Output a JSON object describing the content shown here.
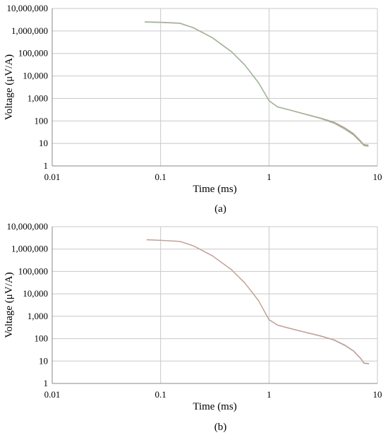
{
  "chart_data": [
    {
      "type": "line",
      "panel_label": "(a)",
      "xlabel": "Time (ms)",
      "ylabel": "Voltage (μV/A)",
      "x_scale": "log",
      "y_scale": "log",
      "xlim": [
        0.01,
        10
      ],
      "ylim": [
        1,
        10000000
      ],
      "grid": "on",
      "x_ticks": [
        {
          "value": 0.01,
          "label": "0.01"
        },
        {
          "value": 0.1,
          "label": "0.1"
        },
        {
          "value": 1,
          "label": "1"
        },
        {
          "value": 10,
          "label": "10"
        }
      ],
      "y_ticks": [
        {
          "value": 1,
          "label": "1"
        },
        {
          "value": 10,
          "label": "10"
        },
        {
          "value": 100,
          "label": "100"
        },
        {
          "value": 1000,
          "label": "1,000"
        },
        {
          "value": 10000,
          "label": "10,000"
        },
        {
          "value": 100000,
          "label": "100,000"
        },
        {
          "value": 1000000,
          "label": "1,000,000"
        },
        {
          "value": 10000000,
          "label": "10,000,000"
        }
      ],
      "series": [
        {
          "color": "#8fa3b8",
          "x": [
            0.072,
            0.1,
            0.15,
            0.2,
            0.3,
            0.45,
            0.6,
            0.8,
            1.0,
            1.2,
            1.5,
            2.0,
            3.0,
            4.0,
            5.0,
            6.0,
            7.0,
            7.5,
            8.2
          ],
          "y": [
            2500000,
            2400000,
            2200000,
            1400000,
            500000,
            120000,
            30000,
            5000,
            800,
            420,
            320,
            220,
            130,
            80,
            45,
            25,
            12,
            8.5,
            8
          ]
        },
        {
          "color": "#c8a090",
          "x": [
            0.072,
            0.1,
            0.15,
            0.2,
            0.3,
            0.45,
            0.6,
            0.8,
            1.0,
            1.2,
            1.5,
            2.0,
            3.0,
            4.0,
            5.0,
            6.0,
            7.0,
            7.5,
            8.2
          ],
          "y": [
            2550000,
            2450000,
            2250000,
            1420000,
            510000,
            122000,
            30500,
            5100,
            810,
            425,
            325,
            225,
            135,
            88,
            50,
            28,
            13,
            9,
            8.5
          ]
        },
        {
          "color": "#9bb89b",
          "x": [
            0.072,
            0.1,
            0.15,
            0.2,
            0.3,
            0.45,
            0.6,
            0.8,
            1.0,
            1.2,
            1.5,
            2.0,
            3.0,
            4.0,
            5.0,
            6.0,
            7.0,
            7.5,
            8.2
          ],
          "y": [
            2480000,
            2380000,
            2180000,
            1380000,
            495000,
            119000,
            29800,
            4950,
            790,
            415,
            318,
            218,
            128,
            78,
            43,
            24,
            11.5,
            8,
            7.5
          ]
        }
      ]
    },
    {
      "type": "line",
      "panel_label": "(b)",
      "xlabel": "Time (ms)",
      "ylabel": "Voltage (μV/A)",
      "x_scale": "log",
      "y_scale": "log",
      "xlim": [
        0.01,
        10
      ],
      "ylim": [
        1,
        10000000
      ],
      "grid": "on",
      "x_ticks": [
        {
          "value": 0.01,
          "label": "0.01"
        },
        {
          "value": 0.1,
          "label": "0.1"
        },
        {
          "value": 1,
          "label": "1"
        },
        {
          "value": 10,
          "label": "10"
        }
      ],
      "y_ticks": [
        {
          "value": 1,
          "label": "1"
        },
        {
          "value": 10,
          "label": "10"
        },
        {
          "value": 100,
          "label": "100"
        },
        {
          "value": 1000,
          "label": "1,000"
        },
        {
          "value": 10000,
          "label": "10,000"
        },
        {
          "value": 100000,
          "label": "100,000"
        },
        {
          "value": 1000000,
          "label": "1,000,000"
        },
        {
          "value": 10000000,
          "label": "10,000,000"
        }
      ],
      "series": [
        {
          "color": "#8fa3b8",
          "x": [
            0.075,
            0.1,
            0.15,
            0.2,
            0.3,
            0.45,
            0.6,
            0.8,
            1.0,
            1.2,
            1.5,
            2.0,
            3.0,
            4.0,
            5.0,
            6.0,
            7.0,
            7.5,
            8.3
          ],
          "y": [
            2600000,
            2450000,
            2200000,
            1400000,
            500000,
            120000,
            30000,
            5000,
            700,
            400,
            300,
            210,
            130,
            85,
            50,
            28,
            13,
            8,
            7.5
          ]
        },
        {
          "color": "#c8a090",
          "x": [
            0.075,
            0.1,
            0.15,
            0.2,
            0.3,
            0.45,
            0.6,
            0.8,
            1.0,
            1.2,
            1.5,
            2.0,
            3.0,
            4.0,
            5.0,
            6.0,
            7.0,
            7.5,
            8.3
          ],
          "y": [
            2620000,
            2470000,
            2220000,
            1410000,
            505000,
            121000,
            30300,
            5050,
            710,
            405,
            305,
            214,
            133,
            88,
            52,
            29,
            13.5,
            8.3,
            7.8
          ]
        }
      ]
    }
  ]
}
